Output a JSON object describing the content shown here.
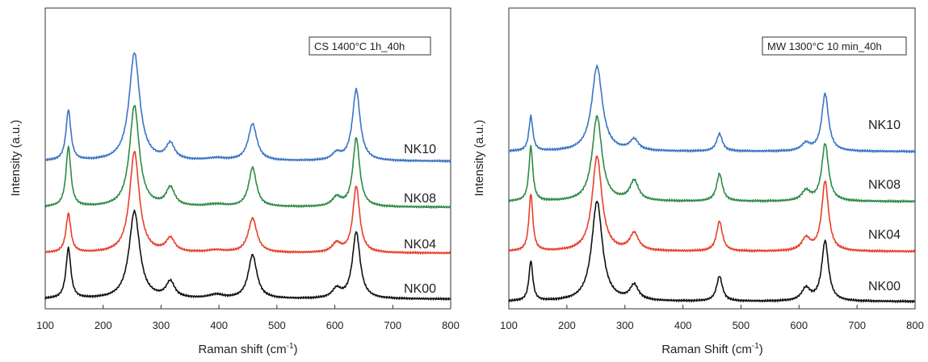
{
  "chart_data": [
    {
      "type": "line",
      "title": "",
      "xlabel": "Raman shift (cm",
      "xlabel_sup": "-1",
      "xlabel_close": ")",
      "ylabel": "Intensity (a.u.)",
      "xlim": [
        100,
        800
      ],
      "xticks": [
        "100",
        "200",
        "300",
        "400",
        "500",
        "600",
        "700",
        "800"
      ],
      "yticks": [],
      "annotation": "CS 1400°C 1h_40h",
      "grid": false,
      "series": [
        {
          "name": "NK10",
          "color": "#3a75c4",
          "offset": 3.0,
          "peaks": [
            [
              140,
              1.1,
              5
            ],
            [
              254,
              2.35,
              11
            ],
            [
              316,
              0.35,
              9
            ],
            [
              395,
              0.05,
              20
            ],
            [
              458,
              0.8,
              9
            ],
            [
              603,
              0.15,
              9
            ],
            [
              637,
              1.55,
              8
            ]
          ]
        },
        {
          "name": "NK08",
          "color": "#2e8b44",
          "offset": 2.0,
          "peaks": [
            [
              140,
              1.3,
              5
            ],
            [
              254,
              2.2,
              10
            ],
            [
              316,
              0.4,
              9
            ],
            [
              395,
              0.05,
              20
            ],
            [
              458,
              0.85,
              8
            ],
            [
              603,
              0.2,
              9
            ],
            [
              637,
              1.5,
              7
            ]
          ]
        },
        {
          "name": "NK04",
          "color": "#e8402a",
          "offset": 1.0,
          "peaks": [
            [
              140,
              0.85,
              5
            ],
            [
              254,
              2.2,
              10
            ],
            [
              316,
              0.3,
              9
            ],
            [
              395,
              0.05,
              20
            ],
            [
              458,
              0.75,
              9
            ],
            [
              603,
              0.2,
              9
            ],
            [
              637,
              1.45,
              7
            ]
          ]
        },
        {
          "name": "NK00",
          "color": "#111111",
          "offset": 0.0,
          "peaks": [
            [
              140,
              1.1,
              5
            ],
            [
              254,
              1.9,
              11
            ],
            [
              316,
              0.35,
              9
            ],
            [
              395,
              0.08,
              15
            ],
            [
              458,
              0.95,
              9
            ],
            [
              603,
              0.2,
              9
            ],
            [
              637,
              1.45,
              8
            ]
          ]
        }
      ]
    },
    {
      "type": "line",
      "title": "",
      "xlabel": "Raman Shift (cm",
      "xlabel_sup": "-1",
      "xlabel_close": ")",
      "ylabel": "Intensity (a.u.)",
      "xlim": [
        100,
        800
      ],
      "xticks": [
        "100",
        "200",
        "300",
        "400",
        "500",
        "600",
        "700",
        "800"
      ],
      "yticks": [],
      "annotation": "MW 1300°C 10 min_40h",
      "grid": false,
      "series": [
        {
          "name": "NK10",
          "color": "#3a75c4",
          "offset": 3.0,
          "peaks": [
            [
              138,
              0.7,
              4
            ],
            [
              252,
              1.7,
              11
            ],
            [
              316,
              0.22,
              9
            ],
            [
              463,
              0.35,
              6
            ],
            [
              612,
              0.15,
              9
            ],
            [
              645,
              1.15,
              7
            ]
          ]
        },
        {
          "name": "NK08",
          "color": "#2e8b44",
          "offset": 2.0,
          "peaks": [
            [
              138,
              1.1,
              4
            ],
            [
              252,
              1.7,
              10
            ],
            [
              316,
              0.4,
              9
            ],
            [
              463,
              0.55,
              6
            ],
            [
              612,
              0.2,
              9
            ],
            [
              645,
              1.15,
              7
            ]
          ]
        },
        {
          "name": "NK04",
          "color": "#e8402a",
          "offset": 1.0,
          "peaks": [
            [
              138,
              1.15,
              4
            ],
            [
              252,
              1.9,
              10
            ],
            [
              316,
              0.35,
              9
            ],
            [
              463,
              0.6,
              6
            ],
            [
              612,
              0.25,
              9
            ],
            [
              645,
              1.4,
              7
            ]
          ]
        },
        {
          "name": "NK00",
          "color": "#111111",
          "offset": 0.0,
          "peaks": [
            [
              138,
              0.8,
              4
            ],
            [
              252,
              2.0,
              11
            ],
            [
              316,
              0.3,
              9
            ],
            [
              463,
              0.5,
              6
            ],
            [
              612,
              0.25,
              9
            ],
            [
              645,
              1.2,
              7
            ]
          ]
        }
      ]
    }
  ]
}
